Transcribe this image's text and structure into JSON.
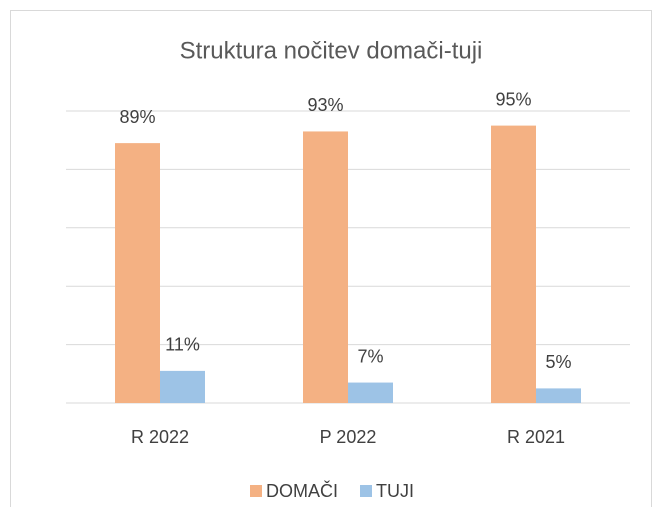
{
  "chart_data": {
    "type": "bar",
    "title": "Struktura nočitev domači-tuji",
    "categories": [
      "R 2022",
      "P 2022",
      "R 2021"
    ],
    "series": [
      {
        "name": "DOMAČI",
        "color": "#f4b183",
        "values": [
          89,
          93,
          95
        ],
        "value_labels": [
          "89%",
          "93%",
          "95%"
        ]
      },
      {
        "name": "TUJI",
        "color": "#9dc3e6",
        "values": [
          11,
          7,
          5
        ],
        "value_labels": [
          "11%",
          "7%",
          "5%"
        ]
      }
    ],
    "ylim": [
      0,
      100
    ],
    "yticks": [
      0,
      20,
      40,
      60,
      80,
      100
    ],
    "grid": true,
    "legend": "bottom"
  }
}
